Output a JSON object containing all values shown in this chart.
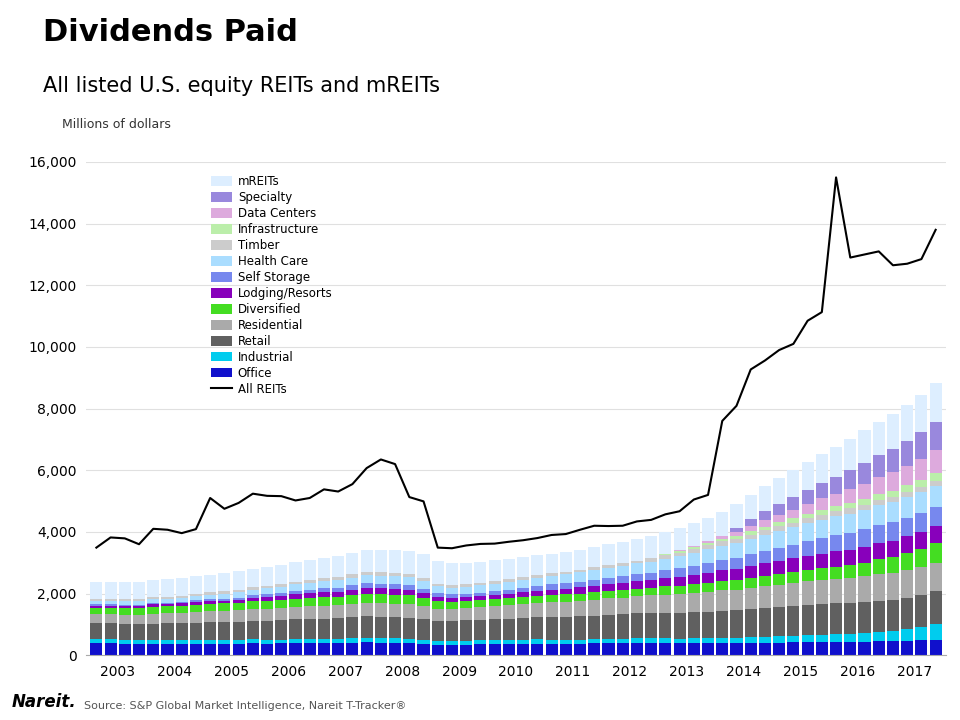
{
  "title": "Dividends Paid",
  "subtitle": "All listed U.S. equity REITs and mREITs",
  "ylabel": "Millions of dollars",
  "source": "Source: S&P Global Market Intelligence, Nareit T-Tracker®",
  "ylim": [
    0,
    16000
  ],
  "yticks": [
    0,
    2000,
    4000,
    6000,
    8000,
    10000,
    12000,
    14000,
    16000
  ],
  "year_labels": [
    "2003",
    "2004",
    "2005",
    "2006",
    "2007",
    "2008",
    "2009",
    "2010",
    "2011",
    "2012",
    "2013",
    "2014",
    "2015",
    "2016",
    "2017"
  ],
  "categories": [
    "Office",
    "Industrial",
    "Retail",
    "Residential",
    "Diversified",
    "Lodging/Resorts",
    "Self Storage",
    "Health Care",
    "Timber",
    "Infrastructure",
    "Data Centers",
    "Specialty",
    "mREITs"
  ],
  "colors": [
    "#1010CC",
    "#00CCEE",
    "#606060",
    "#AAAAAA",
    "#44DD22",
    "#8800BB",
    "#7788EE",
    "#AADDFF",
    "#CCCCCC",
    "#BBEEAA",
    "#DDAADD",
    "#9988DD",
    "#DDEEFF"
  ],
  "data": {
    "Office": [
      400,
      380,
      370,
      360,
      365,
      360,
      360,
      365,
      360,
      370,
      375,
      385,
      375,
      380,
      390,
      390,
      390,
      390,
      400,
      415,
      400,
      390,
      380,
      355,
      340,
      340,
      342,
      352,
      352,
      352,
      362,
      375,
      362,
      362,
      372,
      382,
      392,
      392,
      402,
      402,
      402,
      392,
      392,
      392,
      392,
      392,
      395,
      405,
      405,
      415,
      425,
      435,
      432,
      432,
      442,
      452,
      462,
      472,
      482,
      495
    ],
    "Industrial": [
      130,
      130,
      130,
      130,
      130,
      130,
      135,
      135,
      125,
      125,
      125,
      135,
      125,
      125,
      135,
      135,
      135,
      135,
      145,
      155,
      155,
      155,
      145,
      135,
      125,
      125,
      125,
      125,
      125,
      125,
      125,
      135,
      135,
      135,
      135,
      135,
      135,
      135,
      145,
      145,
      145,
      145,
      155,
      165,
      175,
      175,
      185,
      195,
      205,
      215,
      225,
      235,
      260,
      270,
      290,
      310,
      330,
      375,
      435,
      515
    ],
    "Retail": [
      510,
      520,
      520,
      520,
      530,
      540,
      550,
      560,
      580,
      580,
      590,
      600,
      620,
      630,
      640,
      650,
      660,
      670,
      680,
      690,
      690,
      690,
      690,
      670,
      650,
      650,
      660,
      670,
      690,
      700,
      710,
      720,
      740,
      750,
      760,
      770,
      790,
      800,
      810,
      820,
      830,
      840,
      850,
      860,
      880,
      890,
      910,
      930,
      950,
      970,
      980,
      990,
      990,
      1000,
      1000,
      1010,
      1010,
      1020,
      1030,
      1060
    ],
    "Residential": [
      290,
      300,
      300,
      310,
      320,
      330,
      340,
      350,
      362,
      362,
      372,
      382,
      392,
      392,
      402,
      412,
      422,
      422,
      432,
      442,
      442,
      442,
      442,
      432,
      400,
      400,
      410,
      420,
      432,
      442,
      452,
      462,
      482,
      492,
      502,
      512,
      532,
      542,
      552,
      572,
      592,
      602,
      622,
      642,
      662,
      672,
      692,
      712,
      732,
      742,
      762,
      782,
      802,
      812,
      832,
      852,
      872,
      892,
      912,
      932
    ],
    "Diversified": [
      210,
      210,
      210,
      210,
      220,
      220,
      220,
      230,
      242,
      242,
      242,
      252,
      262,
      262,
      272,
      272,
      272,
      272,
      282,
      292,
      292,
      292,
      282,
      262,
      232,
      222,
      222,
      222,
      222,
      222,
      232,
      232,
      232,
      232,
      232,
      242,
      242,
      242,
      252,
      252,
      262,
      272,
      282,
      292,
      302,
      312,
      322,
      332,
      342,
      352,
      362,
      372,
      392,
      412,
      442,
      492,
      522,
      562,
      602,
      632
    ],
    "Lodging/Resorts": [
      70,
      70,
      70,
      70,
      80,
      80,
      80,
      80,
      90,
      90,
      100,
      110,
      120,
      130,
      140,
      150,
      160,
      170,
      180,
      190,
      190,
      190,
      180,
      160,
      130,
      120,
      120,
      130,
      140,
      150,
      160,
      170,
      180,
      190,
      200,
      210,
      220,
      230,
      240,
      250,
      270,
      290,
      310,
      330,
      350,
      370,
      390,
      410,
      430,
      450,
      470,
      480,
      490,
      500,
      510,
      520,
      520,
      530,
      540,
      550
    ],
    "Self Storage": [
      35,
      35,
      35,
      35,
      45,
      45,
      45,
      55,
      55,
      65,
      65,
      75,
      85,
      95,
      105,
      115,
      125,
      135,
      145,
      155,
      155,
      155,
      155,
      145,
      125,
      115,
      115,
      115,
      125,
      135,
      145,
      155,
      165,
      175,
      185,
      195,
      205,
      215,
      225,
      235,
      255,
      275,
      295,
      315,
      335,
      355,
      375,
      405,
      425,
      445,
      475,
      505,
      525,
      545,
      565,
      585,
      595,
      605,
      615,
      625
    ],
    "Health Care": [
      110,
      110,
      110,
      120,
      120,
      120,
      130,
      140,
      150,
      160,
      170,
      180,
      190,
      200,
      210,
      220,
      230,
      240,
      250,
      260,
      260,
      260,
      260,
      250,
      230,
      220,
      220,
      230,
      240,
      250,
      260,
      270,
      280,
      290,
      300,
      310,
      320,
      330,
      350,
      360,
      380,
      400,
      420,
      440,
      460,
      480,
      500,
      520,
      540,
      560,
      580,
      600,
      610,
      620,
      630,
      640,
      650,
      660,
      670,
      680
    ],
    "Timber": [
      65,
      65,
      65,
      65,
      75,
      75,
      75,
      75,
      75,
      75,
      85,
      85,
      85,
      85,
      95,
      95,
      95,
      95,
      105,
      105,
      105,
      105,
      105,
      95,
      85,
      85,
      85,
      85,
      85,
      85,
      85,
      85,
      85,
      85,
      85,
      95,
      95,
      95,
      95,
      105,
      105,
      105,
      115,
      125,
      135,
      135,
      145,
      145,
      155,
      155,
      165,
      165,
      165,
      175,
      175,
      175,
      175,
      175,
      175,
      175
    ],
    "Infrastructure": [
      0,
      0,
      0,
      0,
      0,
      0,
      0,
      0,
      0,
      0,
      0,
      0,
      0,
      0,
      0,
      0,
      0,
      0,
      0,
      0,
      0,
      0,
      0,
      0,
      0,
      0,
      0,
      0,
      0,
      0,
      0,
      0,
      0,
      0,
      0,
      0,
      0,
      0,
      0,
      0,
      45,
      55,
      65,
      75,
      85,
      95,
      105,
      115,
      125,
      135,
      145,
      155,
      165,
      175,
      185,
      195,
      205,
      215,
      225,
      235
    ],
    "Data Centers": [
      0,
      0,
      0,
      0,
      0,
      0,
      0,
      0,
      0,
      0,
      0,
      0,
      0,
      0,
      0,
      0,
      0,
      0,
      0,
      0,
      0,
      0,
      0,
      0,
      0,
      0,
      0,
      0,
      0,
      0,
      0,
      0,
      0,
      0,
      0,
      0,
      0,
      0,
      0,
      0,
      0,
      25,
      45,
      75,
      105,
      135,
      175,
      205,
      245,
      285,
      325,
      365,
      405,
      445,
      495,
      545,
      595,
      645,
      695,
      745
    ],
    "Specialty": [
      0,
      0,
      0,
      0,
      0,
      0,
      0,
      0,
      0,
      0,
      0,
      0,
      0,
      0,
      0,
      0,
      0,
      0,
      0,
      0,
      0,
      0,
      0,
      0,
      0,
      0,
      0,
      0,
      0,
      0,
      0,
      0,
      0,
      0,
      0,
      0,
      0,
      0,
      0,
      0,
      0,
      0,
      0,
      0,
      0,
      110,
      210,
      310,
      360,
      410,
      460,
      510,
      560,
      610,
      660,
      710,
      760,
      810,
      860,
      910
    ],
    "mREITs": [
      550,
      560,
      565,
      555,
      555,
      565,
      570,
      575,
      575,
      585,
      595,
      605,
      615,
      625,
      635,
      645,
      665,
      675,
      695,
      715,
      735,
      745,
      755,
      775,
      735,
      715,
      695,
      675,
      665,
      655,
      645,
      635,
      635,
      635,
      645,
      655,
      665,
      685,
      695,
      715,
      715,
      725,
      735,
      745,
      765,
      775,
      795,
      815,
      835,
      865,
      895,
      925,
      965,
      1015,
      1065,
      1075,
      1115,
      1165,
      1215,
      1265
    ]
  },
  "line_data": [
    3490,
    3820,
    3790,
    3600,
    4100,
    4070,
    3960,
    4090,
    5100,
    4750,
    4940,
    5240,
    5170,
    5160,
    5020,
    5100,
    5380,
    5310,
    5550,
    6070,
    6350,
    6200,
    5130,
    4990,
    3490,
    3470,
    3560,
    3610,
    3620,
    3680,
    3730,
    3800,
    3900,
    3930,
    4070,
    4200,
    4190,
    4200,
    4340,
    4390,
    4570,
    4670,
    5050,
    5200,
    7600,
    8090,
    9270,
    9560,
    9900,
    10100,
    10850,
    11130,
    15500,
    12900,
    13000,
    13100,
    12650,
    12700,
    12850,
    13800
  ]
}
